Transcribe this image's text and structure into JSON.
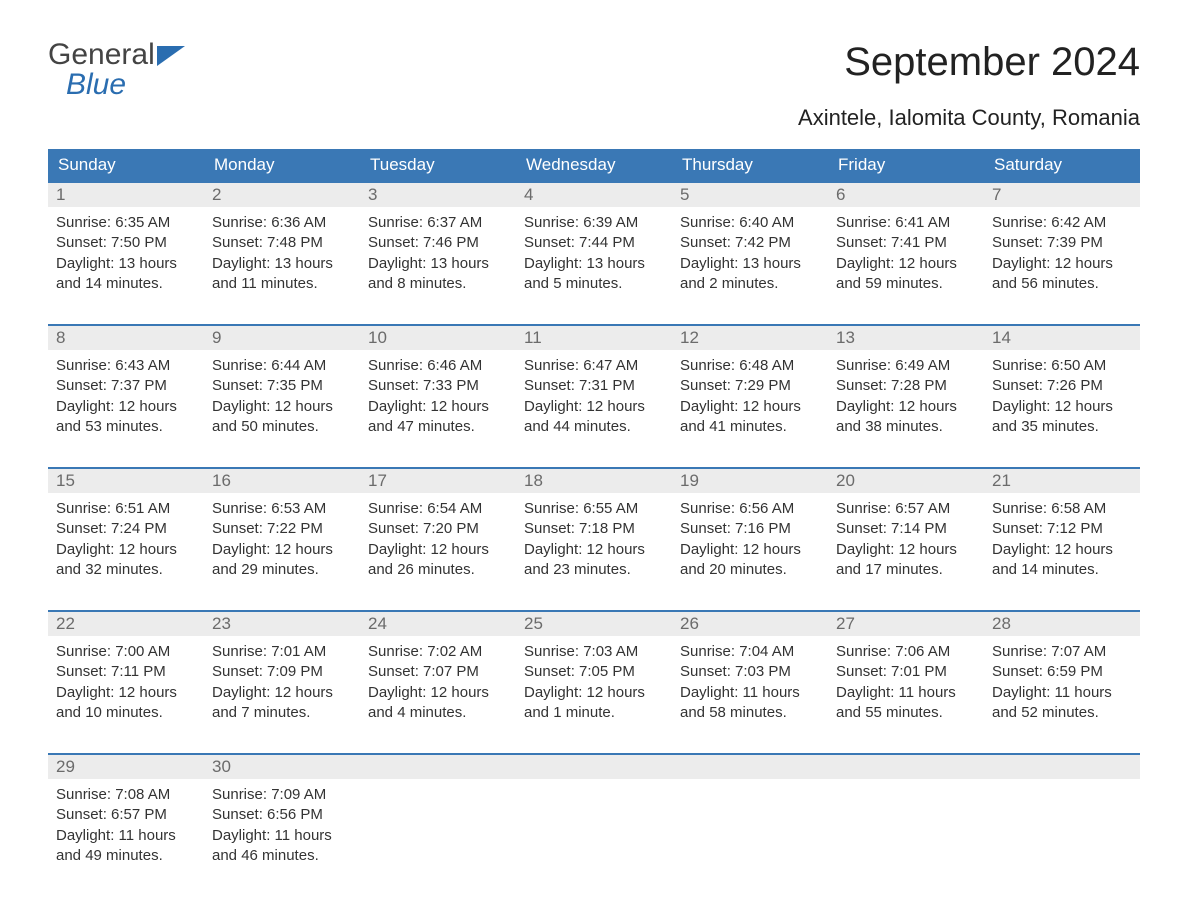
{
  "logo": {
    "word1": "General",
    "word2": "Blue",
    "accent_color": "#2a6db0"
  },
  "header": {
    "month_title": "September 2024",
    "location": "Axintele, Ialomita County, Romania"
  },
  "colors": {
    "header_bg": "#3a78b5",
    "header_text": "#ffffff",
    "daynum_bg": "#ececec",
    "daynum_text": "#6b6b6b",
    "body_text": "#333333",
    "week_border": "#3a78b5",
    "page_bg": "#ffffff"
  },
  "weekdays": [
    "Sunday",
    "Monday",
    "Tuesday",
    "Wednesday",
    "Thursday",
    "Friday",
    "Saturday"
  ],
  "weeks": [
    [
      {
        "n": "1",
        "sunrise": "Sunrise: 6:35 AM",
        "sunset": "Sunset: 7:50 PM",
        "daylight": "Daylight: 13 hours and 14 minutes."
      },
      {
        "n": "2",
        "sunrise": "Sunrise: 6:36 AM",
        "sunset": "Sunset: 7:48 PM",
        "daylight": "Daylight: 13 hours and 11 minutes."
      },
      {
        "n": "3",
        "sunrise": "Sunrise: 6:37 AM",
        "sunset": "Sunset: 7:46 PM",
        "daylight": "Daylight: 13 hours and 8 minutes."
      },
      {
        "n": "4",
        "sunrise": "Sunrise: 6:39 AM",
        "sunset": "Sunset: 7:44 PM",
        "daylight": "Daylight: 13 hours and 5 minutes."
      },
      {
        "n": "5",
        "sunrise": "Sunrise: 6:40 AM",
        "sunset": "Sunset: 7:42 PM",
        "daylight": "Daylight: 13 hours and 2 minutes."
      },
      {
        "n": "6",
        "sunrise": "Sunrise: 6:41 AM",
        "sunset": "Sunset: 7:41 PM",
        "daylight": "Daylight: 12 hours and 59 minutes."
      },
      {
        "n": "7",
        "sunrise": "Sunrise: 6:42 AM",
        "sunset": "Sunset: 7:39 PM",
        "daylight": "Daylight: 12 hours and 56 minutes."
      }
    ],
    [
      {
        "n": "8",
        "sunrise": "Sunrise: 6:43 AM",
        "sunset": "Sunset: 7:37 PM",
        "daylight": "Daylight: 12 hours and 53 minutes."
      },
      {
        "n": "9",
        "sunrise": "Sunrise: 6:44 AM",
        "sunset": "Sunset: 7:35 PM",
        "daylight": "Daylight: 12 hours and 50 minutes."
      },
      {
        "n": "10",
        "sunrise": "Sunrise: 6:46 AM",
        "sunset": "Sunset: 7:33 PM",
        "daylight": "Daylight: 12 hours and 47 minutes."
      },
      {
        "n": "11",
        "sunrise": "Sunrise: 6:47 AM",
        "sunset": "Sunset: 7:31 PM",
        "daylight": "Daylight: 12 hours and 44 minutes."
      },
      {
        "n": "12",
        "sunrise": "Sunrise: 6:48 AM",
        "sunset": "Sunset: 7:29 PM",
        "daylight": "Daylight: 12 hours and 41 minutes."
      },
      {
        "n": "13",
        "sunrise": "Sunrise: 6:49 AM",
        "sunset": "Sunset: 7:28 PM",
        "daylight": "Daylight: 12 hours and 38 minutes."
      },
      {
        "n": "14",
        "sunrise": "Sunrise: 6:50 AM",
        "sunset": "Sunset: 7:26 PM",
        "daylight": "Daylight: 12 hours and 35 minutes."
      }
    ],
    [
      {
        "n": "15",
        "sunrise": "Sunrise: 6:51 AM",
        "sunset": "Sunset: 7:24 PM",
        "daylight": "Daylight: 12 hours and 32 minutes."
      },
      {
        "n": "16",
        "sunrise": "Sunrise: 6:53 AM",
        "sunset": "Sunset: 7:22 PM",
        "daylight": "Daylight: 12 hours and 29 minutes."
      },
      {
        "n": "17",
        "sunrise": "Sunrise: 6:54 AM",
        "sunset": "Sunset: 7:20 PM",
        "daylight": "Daylight: 12 hours and 26 minutes."
      },
      {
        "n": "18",
        "sunrise": "Sunrise: 6:55 AM",
        "sunset": "Sunset: 7:18 PM",
        "daylight": "Daylight: 12 hours and 23 minutes."
      },
      {
        "n": "19",
        "sunrise": "Sunrise: 6:56 AM",
        "sunset": "Sunset: 7:16 PM",
        "daylight": "Daylight: 12 hours and 20 minutes."
      },
      {
        "n": "20",
        "sunrise": "Sunrise: 6:57 AM",
        "sunset": "Sunset: 7:14 PM",
        "daylight": "Daylight: 12 hours and 17 minutes."
      },
      {
        "n": "21",
        "sunrise": "Sunrise: 6:58 AM",
        "sunset": "Sunset: 7:12 PM",
        "daylight": "Daylight: 12 hours and 14 minutes."
      }
    ],
    [
      {
        "n": "22",
        "sunrise": "Sunrise: 7:00 AM",
        "sunset": "Sunset: 7:11 PM",
        "daylight": "Daylight: 12 hours and 10 minutes."
      },
      {
        "n": "23",
        "sunrise": "Sunrise: 7:01 AM",
        "sunset": "Sunset: 7:09 PM",
        "daylight": "Daylight: 12 hours and 7 minutes."
      },
      {
        "n": "24",
        "sunrise": "Sunrise: 7:02 AM",
        "sunset": "Sunset: 7:07 PM",
        "daylight": "Daylight: 12 hours and 4 minutes."
      },
      {
        "n": "25",
        "sunrise": "Sunrise: 7:03 AM",
        "sunset": "Sunset: 7:05 PM",
        "daylight": "Daylight: 12 hours and 1 minute."
      },
      {
        "n": "26",
        "sunrise": "Sunrise: 7:04 AM",
        "sunset": "Sunset: 7:03 PM",
        "daylight": "Daylight: 11 hours and 58 minutes."
      },
      {
        "n": "27",
        "sunrise": "Sunrise: 7:06 AM",
        "sunset": "Sunset: 7:01 PM",
        "daylight": "Daylight: 11 hours and 55 minutes."
      },
      {
        "n": "28",
        "sunrise": "Sunrise: 7:07 AM",
        "sunset": "Sunset: 6:59 PM",
        "daylight": "Daylight: 11 hours and 52 minutes."
      }
    ],
    [
      {
        "n": "29",
        "sunrise": "Sunrise: 7:08 AM",
        "sunset": "Sunset: 6:57 PM",
        "daylight": "Daylight: 11 hours and 49 minutes."
      },
      {
        "n": "30",
        "sunrise": "Sunrise: 7:09 AM",
        "sunset": "Sunset: 6:56 PM",
        "daylight": "Daylight: 11 hours and 46 minutes."
      },
      null,
      null,
      null,
      null,
      null
    ]
  ]
}
